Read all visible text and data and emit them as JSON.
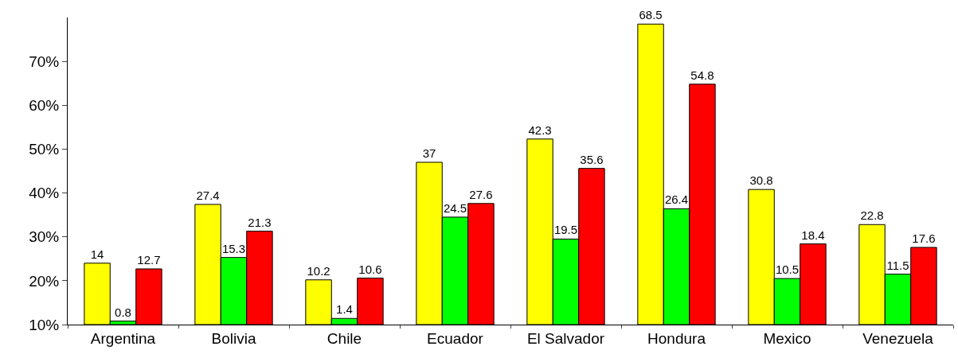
{
  "chart_data": {
    "type": "bar",
    "categories": [
      "Argentina",
      "Bolivia",
      "Chile",
      "Ecuador",
      "El Salvador",
      "Hondura",
      "Mexico",
      "Venezuela"
    ],
    "series": [
      {
        "color": "#ffff00",
        "values": [
          14,
          27.4,
          10.2,
          37,
          42.3,
          68.5,
          30.8,
          22.8
        ],
        "base": [
          10,
          10,
          10,
          10,
          10,
          10,
          10,
          10
        ]
      },
      {
        "color": "#00ff00",
        "values": [
          0.8,
          15.3,
          1.4,
          24.5,
          19.5,
          26.4,
          10.5,
          11.5
        ],
        "base": [
          10,
          10,
          10,
          10,
          10,
          10,
          10,
          10
        ]
      },
      {
        "color": "#ff0000",
        "values": [
          12.7,
          21.3,
          10.6,
          27.6,
          35.6,
          54.8,
          18.4,
          17.6
        ],
        "base": [
          10,
          10,
          10,
          10,
          10,
          10,
          10,
          10
        ]
      }
    ],
    "ylim": [
      10,
      80
    ],
    "yticks": [
      {
        "value": 10,
        "label": "10%"
      },
      {
        "value": 20,
        "label": "20%"
      },
      {
        "value": 30,
        "label": "30%"
      },
      {
        "value": 40,
        "label": "40%"
      },
      {
        "value": 50,
        "label": "50%"
      },
      {
        "value": 60,
        "label": "60%"
      },
      {
        "value": 70,
        "label": "70%"
      }
    ],
    "data_labels": true,
    "grid": false
  }
}
